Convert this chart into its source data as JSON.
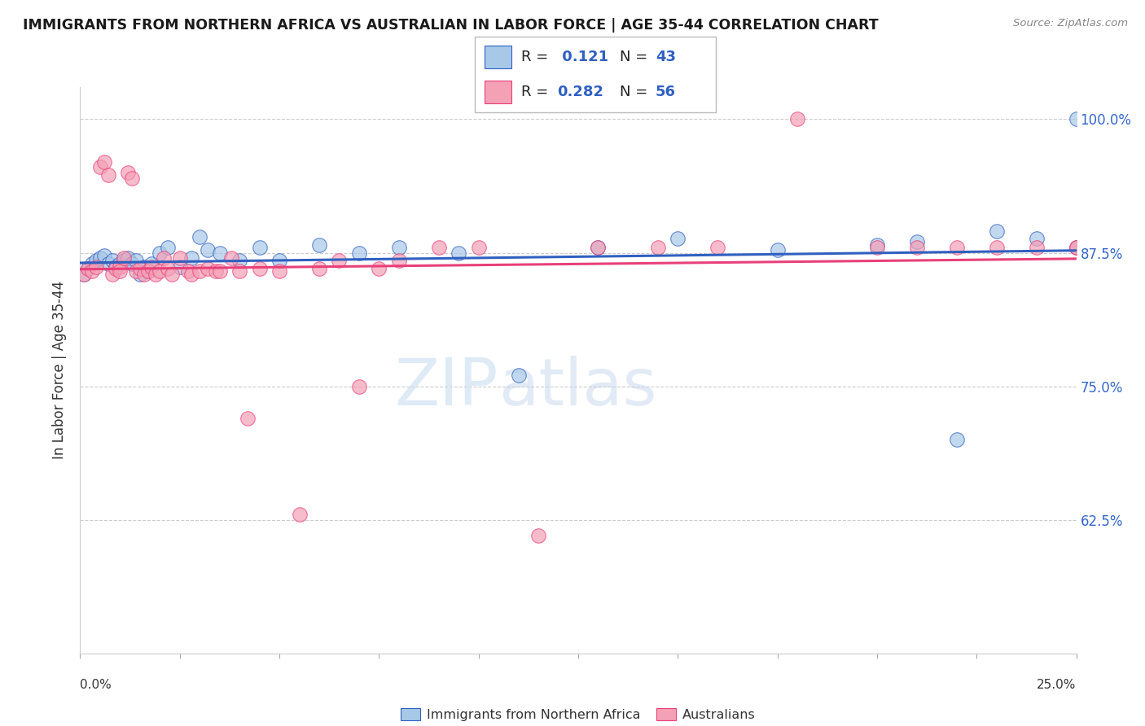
{
  "title": "IMMIGRANTS FROM NORTHERN AFRICA VS AUSTRALIAN IN LABOR FORCE | AGE 35-44 CORRELATION CHART",
  "source": "Source: ZipAtlas.com",
  "ylabel_label": "In Labor Force | Age 35-44",
  "xlim": [
    0.0,
    0.25
  ],
  "ylim": [
    0.5,
    1.03
  ],
  "yticks": [
    0.625,
    0.75,
    0.875,
    1.0
  ],
  "ytick_labels": [
    "62.5%",
    "75.0%",
    "87.5%",
    "100.0%"
  ],
  "legend_r1": "R =  0.121",
  "legend_n1": "N = 43",
  "legend_r2": "R = 0.282",
  "legend_n2": "N = 56",
  "blue_color": "#a8c8e8",
  "pink_color": "#f4a0b5",
  "line_blue": "#3060c0",
  "line_pink": "#e8407a",
  "watermark_zip": "ZIP",
  "watermark_atlas": "atlas",
  "blue_scatter_x": [
    0.001,
    0.002,
    0.003,
    0.004,
    0.005,
    0.006,
    0.007,
    0.008,
    0.009,
    0.01,
    0.011,
    0.012,
    0.013,
    0.014,
    0.015,
    0.016,
    0.017,
    0.018,
    0.02,
    0.022,
    0.025,
    0.028,
    0.03,
    0.032,
    0.035,
    0.04,
    0.045,
    0.05,
    0.06,
    0.07,
    0.08,
    0.095,
    0.11,
    0.13,
    0.15,
    0.175,
    0.2,
    0.21,
    0.22,
    0.23,
    0.24,
    0.25,
    0.25
  ],
  "blue_scatter_y": [
    0.855,
    0.86,
    0.865,
    0.868,
    0.87,
    0.872,
    0.865,
    0.868,
    0.862,
    0.865,
    0.868,
    0.87,
    0.865,
    0.868,
    0.855,
    0.862,
    0.858,
    0.865,
    0.875,
    0.88,
    0.862,
    0.87,
    0.89,
    0.878,
    0.875,
    0.868,
    0.88,
    0.868,
    0.882,
    0.875,
    0.88,
    0.875,
    0.76,
    0.88,
    0.888,
    0.878,
    0.882,
    0.885,
    0.7,
    0.895,
    0.888,
    1.0,
    0.88
  ],
  "pink_scatter_x": [
    0.001,
    0.002,
    0.003,
    0.004,
    0.005,
    0.006,
    0.007,
    0.008,
    0.009,
    0.01,
    0.01,
    0.011,
    0.012,
    0.013,
    0.014,
    0.015,
    0.016,
    0.017,
    0.018,
    0.019,
    0.02,
    0.021,
    0.022,
    0.023,
    0.025,
    0.027,
    0.028,
    0.03,
    0.032,
    0.034,
    0.035,
    0.038,
    0.04,
    0.042,
    0.045,
    0.05,
    0.055,
    0.06,
    0.065,
    0.07,
    0.075,
    0.08,
    0.09,
    0.1,
    0.115,
    0.13,
    0.145,
    0.16,
    0.18,
    0.2,
    0.21,
    0.22,
    0.23,
    0.24,
    0.25,
    0.25
  ],
  "pink_scatter_y": [
    0.855,
    0.86,
    0.858,
    0.862,
    0.955,
    0.96,
    0.948,
    0.855,
    0.86,
    0.862,
    0.858,
    0.87,
    0.95,
    0.945,
    0.858,
    0.86,
    0.855,
    0.858,
    0.862,
    0.855,
    0.858,
    0.87,
    0.86,
    0.855,
    0.87,
    0.858,
    0.855,
    0.858,
    0.86,
    0.858,
    0.858,
    0.87,
    0.858,
    0.72,
    0.86,
    0.858,
    0.63,
    0.86,
    0.868,
    0.75,
    0.86,
    0.868,
    0.88,
    0.88,
    0.61,
    0.88,
    0.88,
    0.88,
    1.0,
    0.88,
    0.88,
    0.88,
    0.88,
    0.88,
    0.88,
    0.88
  ]
}
